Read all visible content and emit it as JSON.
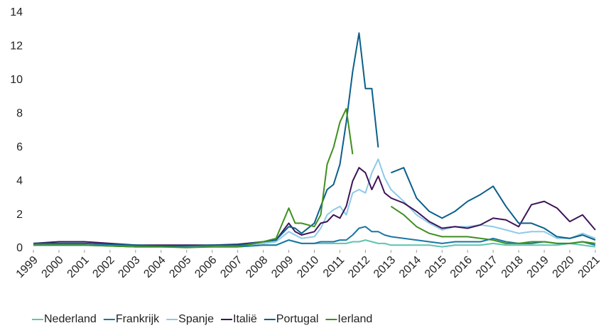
{
  "chart_data": {
    "type": "line",
    "x": [
      1999,
      2000,
      2001,
      2002,
      2003,
      2004,
      2005,
      2006,
      2007,
      2008,
      2008.5,
      2009,
      2009.25,
      2009.5,
      2010,
      2010.25,
      2010.5,
      2010.75,
      2011,
      2011.25,
      2011.5,
      2011.75,
      2012,
      2012.25,
      2012.5,
      2012.75,
      2013,
      2013.5,
      2014,
      2014.5,
      2015,
      2015.5,
      2016,
      2016.5,
      2017,
      2017.5,
      2018,
      2018.5,
      2019,
      2019.5,
      2020,
      2020.5,
      2021
    ],
    "series": [
      {
        "name": "Nederland",
        "color": "#5ec4b0",
        "values": [
          0.2,
          0.2,
          0.2,
          0.15,
          0.1,
          0.1,
          0.1,
          0.1,
          0.1,
          0.2,
          0.2,
          0.5,
          0.4,
          0.3,
          0.3,
          0.3,
          0.3,
          0.3,
          0.3,
          0.3,
          0.4,
          0.4,
          0.5,
          0.4,
          0.3,
          0.3,
          0.2,
          0.2,
          0.2,
          0.2,
          0.1,
          0.2,
          0.2,
          0.2,
          0.3,
          0.2,
          0.2,
          0.2,
          0.2,
          0.2,
          0.3,
          0.2,
          0.1
        ]
      },
      {
        "name": "Frankrijk",
        "color": "#1a77a3",
        "values": [
          0.2,
          0.2,
          0.2,
          0.15,
          0.1,
          0.1,
          0.1,
          0.1,
          0.1,
          0.2,
          0.2,
          0.5,
          0.4,
          0.3,
          0.3,
          0.4,
          0.4,
          0.4,
          0.5,
          0.5,
          0.8,
          1.2,
          1.3,
          1.0,
          1.0,
          0.8,
          0.7,
          0.6,
          0.5,
          0.4,
          0.3,
          0.4,
          0.4,
          0.4,
          0.6,
          0.4,
          0.3,
          0.3,
          0.4,
          0.3,
          0.3,
          0.4,
          0.2
        ]
      },
      {
        "name": "Spanje",
        "color": "#8ecae6",
        "values": [
          0.3,
          0.3,
          0.3,
          0.2,
          0.15,
          0.1,
          0.1,
          0.1,
          0.15,
          0.3,
          0.4,
          1.0,
          0.8,
          0.6,
          0.7,
          1.2,
          2.0,
          2.3,
          2.5,
          2.0,
          3.3,
          3.5,
          3.3,
          4.5,
          5.3,
          4.2,
          3.5,
          2.8,
          2.0,
          1.5,
          1.1,
          1.3,
          1.3,
          1.4,
          1.3,
          1.1,
          0.9,
          1.0,
          1.0,
          0.6,
          0.6,
          0.9,
          0.6
        ]
      },
      {
        "name": "Italië",
        "color": "#3d1458",
        "values": [
          0.3,
          0.4,
          0.4,
          0.3,
          0.2,
          0.2,
          0.2,
          0.2,
          0.25,
          0.4,
          0.5,
          1.5,
          1.0,
          0.8,
          1.0,
          1.5,
          1.6,
          2.0,
          1.8,
          2.5,
          4.0,
          4.8,
          4.5,
          3.5,
          4.3,
          3.3,
          3.0,
          2.7,
          2.2,
          1.6,
          1.2,
          1.3,
          1.2,
          1.4,
          1.8,
          1.7,
          1.3,
          2.6,
          2.8,
          2.4,
          1.6,
          2.0,
          1.1
        ]
      },
      {
        "name": "Portugal",
        "color": "#0a5f8a",
        "values": [
          0.3,
          0.3,
          0.3,
          0.25,
          0.2,
          0.15,
          0.15,
          0.2,
          0.2,
          0.4,
          0.5,
          1.3,
          1.2,
          0.9,
          1.5,
          2.5,
          3.5,
          3.8,
          5.0,
          7.5,
          10.5,
          12.8,
          9.5,
          9.5,
          6.0,
          null,
          4.5,
          4.8,
          3.0,
          2.2,
          1.8,
          2.2,
          2.8,
          3.2,
          3.7,
          2.5,
          1.5,
          1.5,
          1.2,
          0.7,
          0.6,
          0.8,
          0.5
        ]
      },
      {
        "name": "Ierland",
        "color": "#3f8f1f",
        "values": [
          0.2,
          0.2,
          0.2,
          0.15,
          0.1,
          0.1,
          0.05,
          0.1,
          0.1,
          0.4,
          0.6,
          2.4,
          1.5,
          1.5,
          1.3,
          2.0,
          5.0,
          6.0,
          7.5,
          8.3,
          5.6,
          null,
          null,
          null,
          null,
          null,
          2.5,
          2.0,
          1.3,
          0.9,
          0.7,
          0.7,
          0.7,
          0.6,
          0.5,
          0.3,
          0.3,
          0.4,
          0.4,
          0.3,
          0.3,
          0.4,
          0.3
        ]
      }
    ],
    "xlim": [
      1999,
      2021
    ],
    "xticks": [
      1999,
      2000,
      2001,
      2002,
      2003,
      2004,
      2005,
      2006,
      2007,
      2008,
      2009,
      2010,
      2011,
      2012,
      2013,
      2014,
      2015,
      2016,
      2017,
      2018,
      2019,
      2020,
      2021
    ],
    "ylim": [
      0,
      14
    ],
    "yticks": [
      0,
      2,
      4,
      6,
      8,
      10,
      12,
      14
    ],
    "grid": false,
    "legend": "bottom"
  }
}
